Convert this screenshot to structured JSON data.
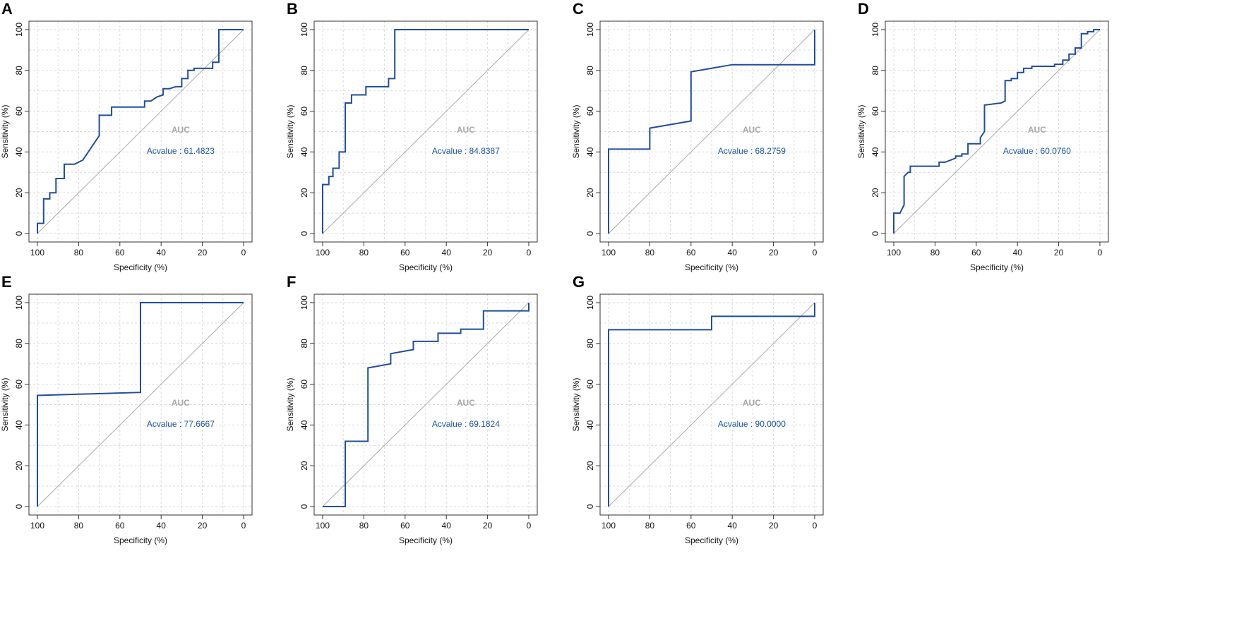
{
  "chart_data": [
    {
      "type": "line",
      "panel": "A",
      "title": "",
      "xlabel": "Specificity (%)",
      "ylabel": "Sensitivity (%)",
      "xlim": [
        100,
        0
      ],
      "ylim": [
        0,
        100
      ],
      "x_ticks": [
        "100",
        "80",
        "60",
        "40",
        "20",
        "0"
      ],
      "y_ticks": [
        "0",
        "20",
        "40",
        "60",
        "80",
        "100"
      ],
      "auc_label": "AUC",
      "auc_text": "Acvalue : 61.4823",
      "series": [
        {
          "name": "ROC",
          "x": [
            100,
            100,
            97,
            97,
            94,
            94,
            91,
            91,
            87,
            87,
            82,
            82,
            78,
            70,
            70,
            64,
            64,
            48,
            48,
            45,
            42,
            42,
            39,
            39,
            36,
            33,
            33,
            30,
            30,
            27,
            27,
            24,
            24,
            21,
            18,
            18,
            15,
            15,
            12,
            12,
            0
          ],
          "y": [
            0,
            5,
            5,
            17,
            17,
            20,
            20,
            27,
            27,
            34,
            34,
            34,
            36,
            48,
            58,
            58,
            62,
            62,
            65,
            65,
            67,
            67,
            68,
            71,
            71,
            72,
            72,
            72,
            76,
            76,
            80,
            80,
            81,
            81,
            81,
            81,
            81,
            84,
            84,
            100,
            100
          ]
        }
      ]
    },
    {
      "type": "line",
      "panel": "B",
      "title": "",
      "xlabel": "Specificity (%)",
      "ylabel": "Sensitivity (%)",
      "xlim": [
        100,
        0
      ],
      "ylim": [
        0,
        100
      ],
      "x_ticks": [
        "100",
        "80",
        "60",
        "40",
        "20",
        "0"
      ],
      "y_ticks": [
        "0",
        "20",
        "40",
        "60",
        "80",
        "100"
      ],
      "auc_label": "AUC",
      "auc_text": "Acvalue : 84.8387",
      "series": [
        {
          "name": "ROC",
          "x": [
            100,
            100,
            97,
            97,
            95,
            95,
            92,
            92,
            89,
            89,
            88,
            88,
            86,
            86,
            79,
            79,
            68,
            68,
            65,
            65,
            0
          ],
          "y": [
            0,
            24,
            24,
            28,
            28,
            32,
            32,
            40,
            40,
            64,
            64,
            64,
            64,
            68,
            68,
            72,
            72,
            76,
            76,
            100,
            100
          ]
        }
      ]
    },
    {
      "type": "line",
      "panel": "C",
      "title": "",
      "xlabel": "Specificity (%)",
      "ylabel": "Sensitivity (%)",
      "xlim": [
        100,
        0
      ],
      "ylim": [
        0,
        100
      ],
      "x_ticks": [
        "100",
        "80",
        "60",
        "40",
        "20",
        "0"
      ],
      "y_ticks": [
        "0",
        "20",
        "40",
        "60",
        "80",
        "100"
      ],
      "auc_label": "AUC",
      "auc_text": "Acvalue : 68.2759",
      "series": [
        {
          "name": "ROC",
          "x": [
            100,
            100,
            80,
            80,
            60,
            60,
            40,
            0,
            0
          ],
          "y": [
            0,
            41.4,
            41.4,
            51.7,
            55.2,
            79.3,
            82.8,
            82.8,
            100
          ]
        }
      ]
    },
    {
      "type": "line",
      "panel": "D",
      "title": "",
      "xlabel": "Specificity (%)",
      "ylabel": "Sensitivity (%)",
      "xlim": [
        100,
        0
      ],
      "ylim": [
        0,
        100
      ],
      "x_ticks": [
        "100",
        "80",
        "60",
        "40",
        "20",
        "0"
      ],
      "y_ticks": [
        "0",
        "20",
        "40",
        "60",
        "80",
        "100"
      ],
      "auc_label": "AUC",
      "auc_text": "Acvalue : 60.0760",
      "series": [
        {
          "name": "ROC",
          "x": [
            100,
            100,
            97,
            95,
            95,
            93,
            92,
            92,
            78,
            78,
            75,
            70,
            70,
            67,
            67,
            64,
            64,
            58,
            58,
            56,
            56,
            48,
            48,
            46,
            46,
            43,
            43,
            40,
            40,
            37,
            37,
            33,
            33,
            22,
            22,
            18,
            18,
            15,
            15,
            12,
            12,
            9,
            9,
            6,
            6,
            3,
            3,
            0
          ],
          "y": [
            0,
            10,
            10,
            14,
            28,
            30,
            30,
            33,
            33,
            35,
            35,
            37,
            38,
            38,
            39,
            39,
            44,
            44,
            47,
            50,
            63,
            64,
            64,
            65,
            75,
            75,
            76,
            76,
            79,
            79,
            81,
            81,
            82,
            82,
            83,
            83,
            85,
            85,
            88,
            88,
            91,
            91,
            98,
            98,
            99,
            99,
            100,
            100
          ]
        }
      ]
    },
    {
      "type": "line",
      "panel": "E",
      "title": "",
      "xlabel": "Specificity (%)",
      "ylabel": "Sensitivity (%)",
      "xlim": [
        100,
        0
      ],
      "ylim": [
        0,
        100
      ],
      "x_ticks": [
        "100",
        "80",
        "60",
        "40",
        "20",
        "0"
      ],
      "y_ticks": [
        "0",
        "20",
        "40",
        "60",
        "80",
        "100"
      ],
      "auc_label": "AUC",
      "auc_text": "Acvalue : 77.6667",
      "series": [
        {
          "name": "ROC",
          "x": [
            100,
            100,
            50,
            50,
            0
          ],
          "y": [
            0,
            54.5,
            56,
            100,
            100
          ]
        }
      ]
    },
    {
      "type": "line",
      "panel": "F",
      "title": "",
      "xlabel": "Specificity (%)",
      "ylabel": "Sensitivity (%)",
      "xlim": [
        100,
        0
      ],
      "ylim": [
        0,
        100
      ],
      "x_ticks": [
        "100",
        "80",
        "60",
        "40",
        "20",
        "0"
      ],
      "y_ticks": [
        "0",
        "20",
        "40",
        "60",
        "80",
        "100"
      ],
      "auc_label": "AUC",
      "auc_text": "Acvalue : 69.1824",
      "series": [
        {
          "name": "ROC",
          "x": [
            100,
            89,
            89,
            78,
            78,
            67,
            67,
            56,
            56,
            44,
            44,
            33,
            33,
            22,
            22,
            0,
            0
          ],
          "y": [
            0,
            0,
            32,
            32,
            68,
            70,
            75,
            77,
            81,
            81,
            85,
            85,
            87,
            87,
            96,
            96,
            100
          ]
        }
      ]
    },
    {
      "type": "line",
      "panel": "G",
      "title": "",
      "xlabel": "Specificity (%)",
      "ylabel": "Sensitivity (%)",
      "xlim": [
        100,
        0
      ],
      "ylim": [
        0,
        100
      ],
      "x_ticks": [
        "100",
        "80",
        "60",
        "40",
        "20",
        "0"
      ],
      "y_ticks": [
        "0",
        "20",
        "40",
        "60",
        "80",
        "100"
      ],
      "auc_label": "AUC",
      "auc_text": "Acvalue : 90.0000",
      "series": [
        {
          "name": "ROC",
          "x": [
            100,
            100,
            50,
            50,
            0,
            0
          ],
          "y": [
            0,
            86.7,
            86.7,
            93.3,
            93.3,
            100
          ]
        }
      ]
    }
  ]
}
